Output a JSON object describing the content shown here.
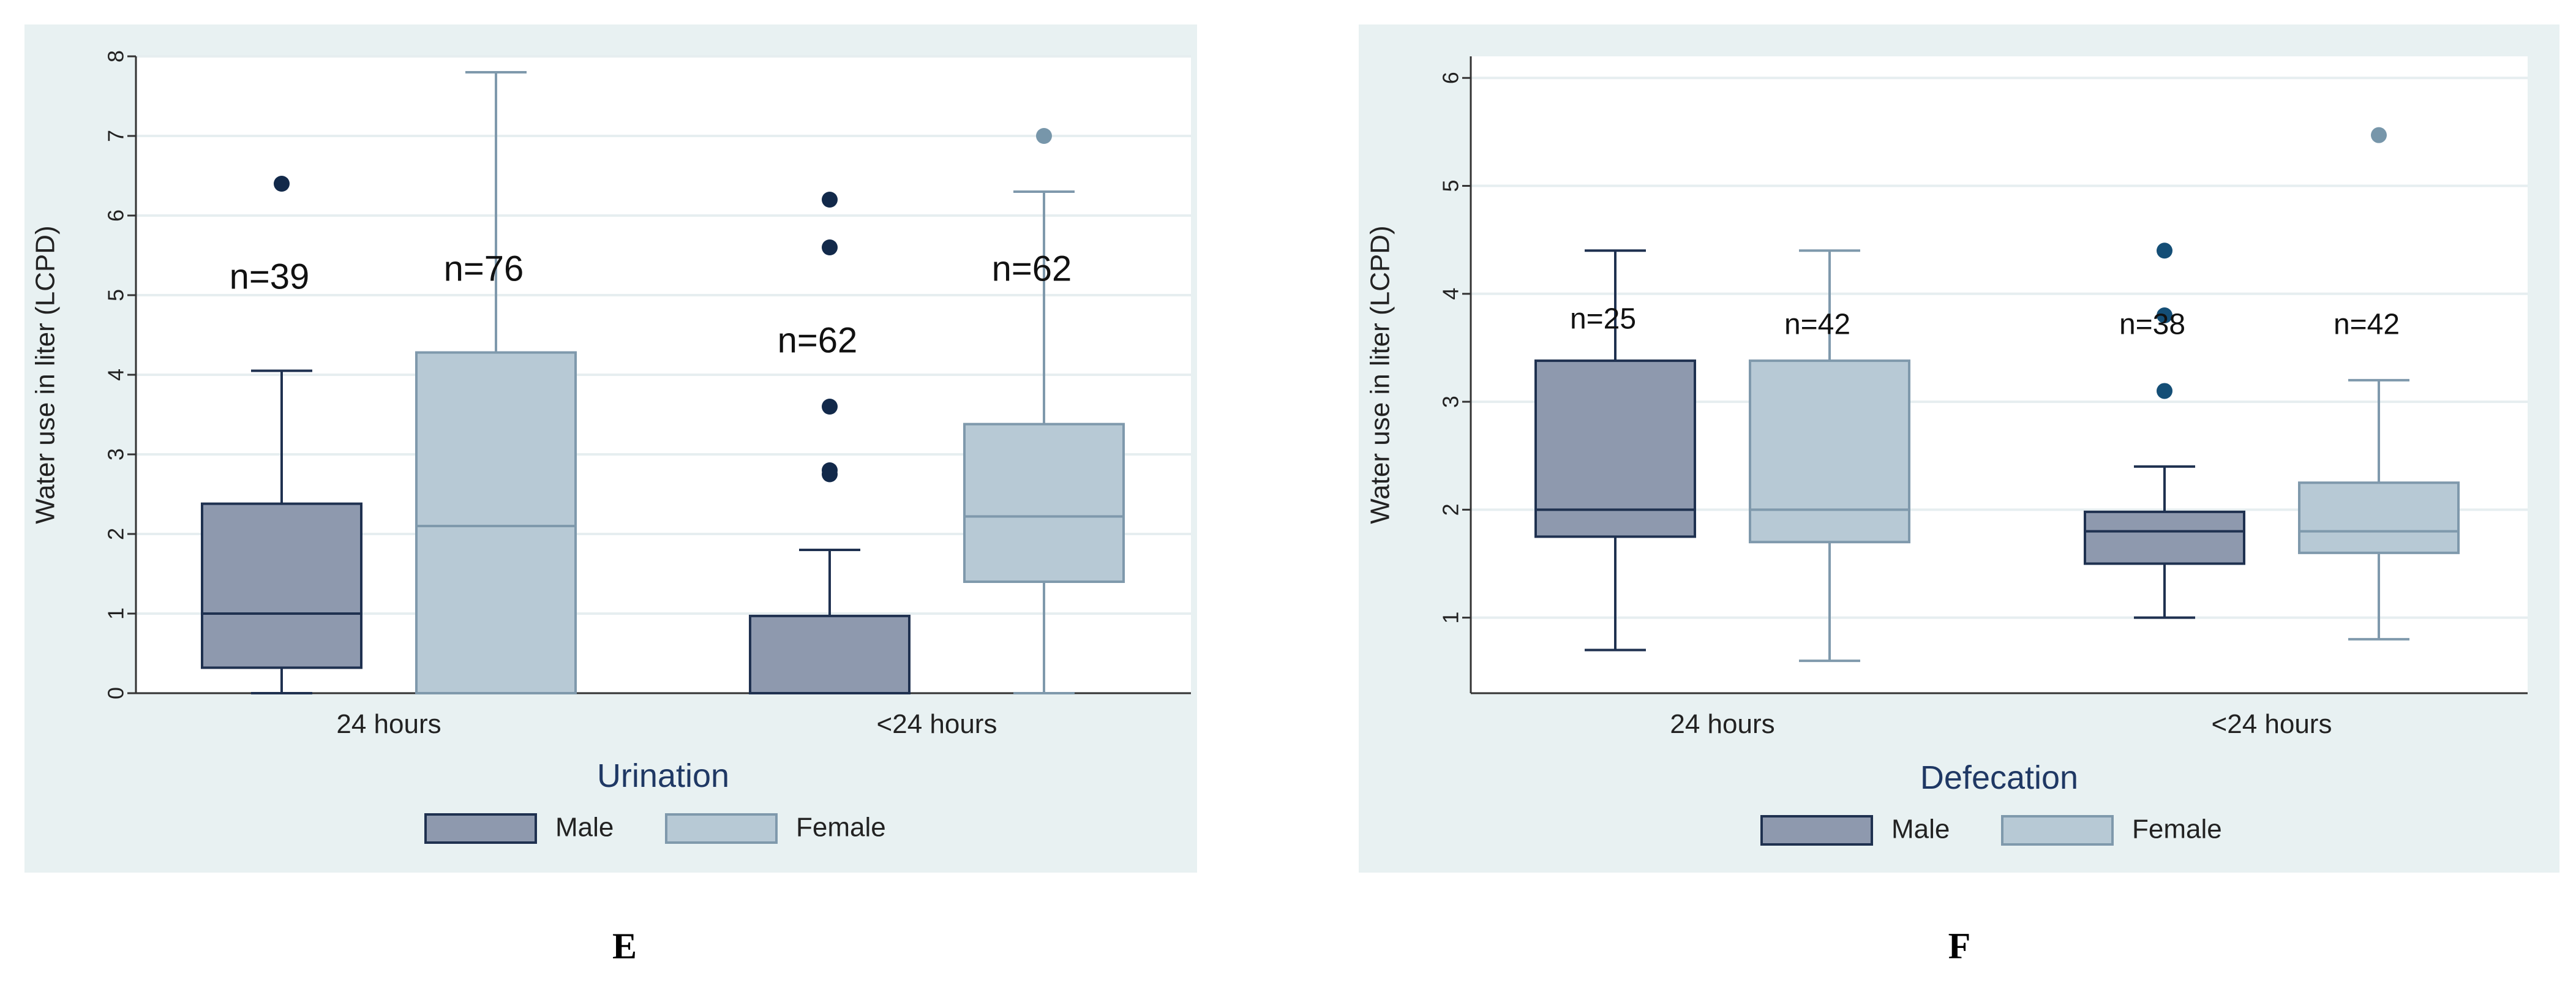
{
  "colors": {
    "panel_bg": "#e8f1f2",
    "plot_bg": "#ffffff",
    "grid": "#e6eef0",
    "axis": "#333333",
    "male_fill": "#8e99ae",
    "male_line": "#1f3150",
    "female_fill": "#b7c9d5",
    "female_line": "#7f99ac",
    "male_outlier": "#12294a",
    "male_outlier_f": "#144e76",
    "female_outlier": "#7796aa",
    "text": "#222222",
    "legend_title": "#1f3864"
  },
  "chart_data": [
    {
      "panel_label": "E",
      "type": "boxplot",
      "title": "Urination",
      "ylabel": "Water use in liter (LCPD)",
      "ylim": [
        0,
        8
      ],
      "yticks": [
        "0",
        "1",
        "2",
        "3",
        "4",
        "5",
        "6",
        "7",
        "8"
      ],
      "categories": [
        "24 hours",
        "<24 hours"
      ],
      "legend": [
        "Male",
        "Female"
      ],
      "series": [
        {
          "name": "Male",
          "boxes": [
            {
              "category": "24 hours",
              "min": 0,
              "q1": 0.32,
              "median": 1.0,
              "q3": 2.38,
              "max": 4.05,
              "outliers": [
                6.4
              ],
              "n_label": "n=39",
              "n_label_y": 5.2
            },
            {
              "category": "<24 hours",
              "min": 0,
              "q1": 0,
              "median": 0,
              "q3": 0.97,
              "max": 1.8,
              "outliers": [
                2.75,
                2.8,
                3.6,
                5.6,
                6.2
              ],
              "n_label": "n=62",
              "n_label_y": 4.4
            }
          ]
        },
        {
          "name": "Female",
          "boxes": [
            {
              "category": "24 hours",
              "min": 0,
              "q1": 0,
              "median": 2.1,
              "q3": 4.28,
              "max": 7.8,
              "outliers": [],
              "n_label": "n=76",
              "n_label_y": 5.3
            },
            {
              "category": "<24 hours",
              "min": 0,
              "q1": 1.4,
              "median": 2.22,
              "q3": 3.38,
              "max": 6.3,
              "outliers": [
                7.0
              ],
              "n_label": "n=62",
              "n_label_y": 5.3
            }
          ]
        }
      ]
    },
    {
      "panel_label": "F",
      "type": "boxplot",
      "title": "Defecation",
      "ylabel": "Water use in liter (LCPD)",
      "ylim": [
        0.3,
        6.2
      ],
      "yticks": [
        "1",
        "2",
        "3",
        "4",
        "5",
        "6"
      ],
      "categories": [
        "24 hours",
        "<24 hours"
      ],
      "legend": [
        "Male",
        "Female"
      ],
      "series": [
        {
          "name": "Male",
          "boxes": [
            {
              "category": "24 hours",
              "min": 0.7,
              "q1": 1.75,
              "median": 2.0,
              "q3": 3.38,
              "max": 4.4,
              "outliers": [],
              "n_label": "n=25",
              "n_label_y": 3.75
            },
            {
              "category": "<24 hours",
              "min": 1.0,
              "q1": 1.5,
              "median": 1.8,
              "q3": 1.98,
              "max": 2.4,
              "outliers": [
                3.1,
                3.8,
                4.4
              ],
              "n_label": "n=38",
              "n_label_y": 3.7
            }
          ]
        },
        {
          "name": "Female",
          "boxes": [
            {
              "category": "24 hours",
              "min": 0.6,
              "q1": 1.7,
              "median": 2.0,
              "q3": 3.38,
              "max": 4.4,
              "outliers": [],
              "n_label": "n=42",
              "n_label_y": 3.7
            },
            {
              "category": "<24 hours",
              "min": 0.8,
              "q1": 1.6,
              "median": 1.8,
              "q3": 2.25,
              "max": 3.2,
              "outliers": [
                5.47
              ],
              "n_label": "n=42",
              "n_label_y": 3.7
            }
          ]
        }
      ]
    }
  ]
}
